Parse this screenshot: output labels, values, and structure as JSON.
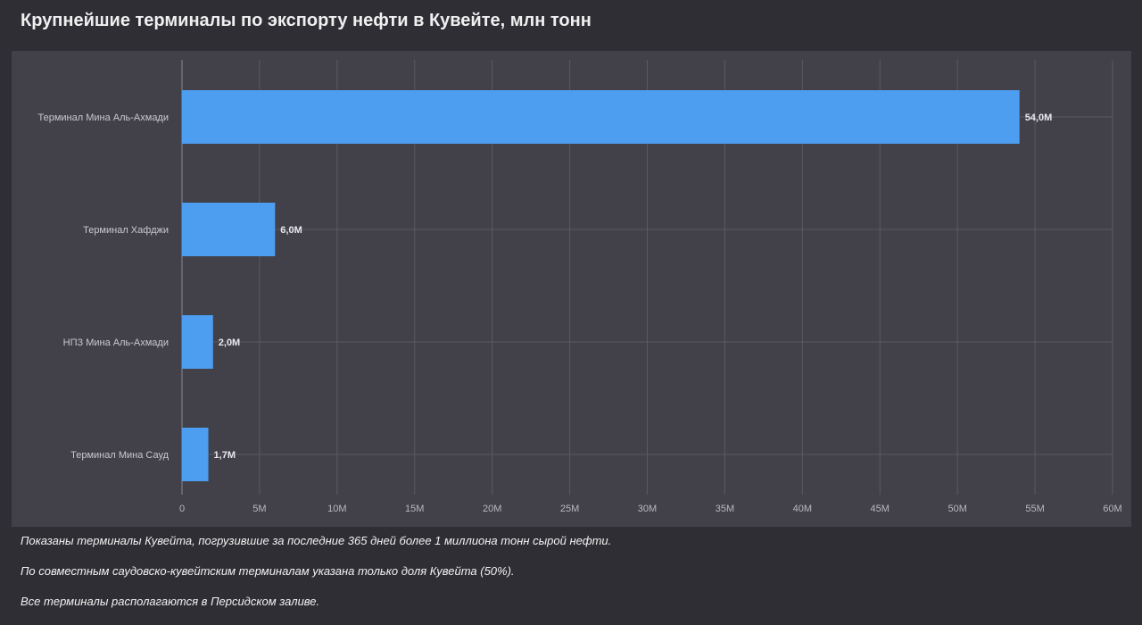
{
  "title": "Крупнейшие терминалы по экспорту нефти в Кувейте, млн тонн",
  "colors": {
    "background": "#2f2e34",
    "panel": "#424149",
    "bar": "#4d9df0",
    "grid": "#5a5961",
    "axis": "#8a8991"
  },
  "chart_data": {
    "type": "bar",
    "orientation": "horizontal",
    "categories": [
      "Терминал Мина Аль-Ахмади",
      "Терминал Хафджи",
      "НПЗ Мина Аль-Ахмади",
      "Терминал Мина Сауд"
    ],
    "values": [
      54.0,
      6.0,
      2.0,
      1.7
    ],
    "data_labels": [
      "54,0M",
      "6,0M",
      "2,0M",
      "1,7M"
    ],
    "xlim": [
      0,
      60
    ],
    "x_ticks": [
      0,
      5,
      10,
      15,
      20,
      25,
      30,
      35,
      40,
      45,
      50,
      55,
      60
    ],
    "x_tick_labels": [
      "0",
      "5M",
      "10M",
      "15M",
      "20M",
      "25M",
      "30M",
      "35M",
      "40M",
      "45M",
      "50M",
      "55M",
      "60M"
    ],
    "grid": true,
    "legend": "none"
  },
  "notes": [
    "Показаны терминалы Кувейта, погрузившие за последние 365 дней более 1 миллиона тонн сырой нефти.",
    "По совместным саудовско-кувейтским терминалам указана только доля Кувейта (50%).",
    "Все терминалы располагаются в Персидском заливе."
  ]
}
